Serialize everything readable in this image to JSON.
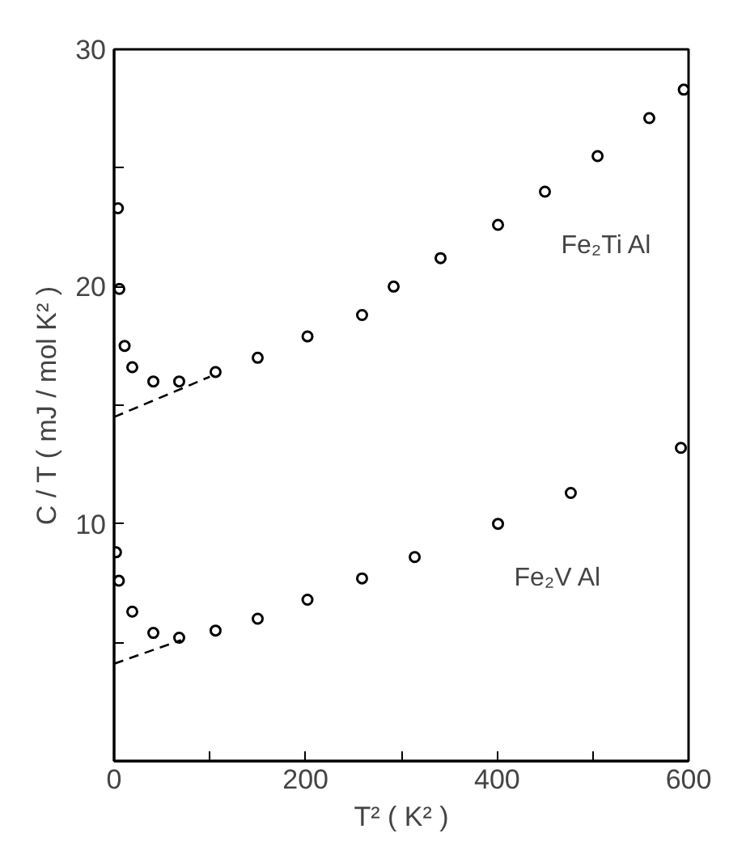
{
  "chart_data": {
    "type": "scatter",
    "xlabel": "T² ( K² )",
    "ylabel": "C / T ( mJ / mol K² )",
    "xlim": [
      0,
      600
    ],
    "ylim": [
      0,
      30
    ],
    "xticks": [
      0,
      {
        "value": 100,
        "label": null
      },
      200,
      {
        "value": 300,
        "label": null
      },
      400,
      {
        "value": 500,
        "label": null
      },
      600
    ],
    "yticks": [
      {
        "value": 5,
        "label": null
      },
      10,
      {
        "value": 15,
        "label": null
      },
      20,
      {
        "value": 25,
        "label": null
      },
      30
    ],
    "grid": false,
    "marker": "circle",
    "series": [
      {
        "name": "Fe₂Ti Al",
        "color": "#000000",
        "x": [
          4,
          5.5,
          11,
          19,
          41,
          68,
          106,
          150,
          202,
          259,
          292,
          341,
          401,
          450,
          505,
          559,
          595
        ],
        "values": [
          23.3,
          19.9,
          17.5,
          16.6,
          16.0,
          16.0,
          16.4,
          17.0,
          17.9,
          18.8,
          20.0,
          21.2,
          22.6,
          24.0,
          25.5,
          27.1,
          28.3
        ]
      },
      {
        "name": "Fe₂V Al",
        "color": "#000000",
        "x": [
          2,
          5,
          19,
          41,
          68,
          106,
          150,
          202,
          259,
          314,
          401,
          477,
          592
        ],
        "values": [
          8.8,
          7.6,
          6.3,
          5.4,
          5.2,
          5.5,
          6.0,
          6.8,
          7.7,
          8.6,
          10.0,
          11.3,
          13.2
        ]
      },
      {
        "type": "line",
        "line_style": "dashed",
        "marker": "none",
        "color": "#000000",
        "x": [
          0,
          100
        ],
        "values": [
          14.5,
          16.2
        ]
      },
      {
        "type": "line",
        "line_style": "dashed",
        "marker": "none",
        "color": "#000000",
        "x": [
          0,
          70
        ],
        "values": [
          4.1,
          5.1
        ]
      }
    ]
  }
}
